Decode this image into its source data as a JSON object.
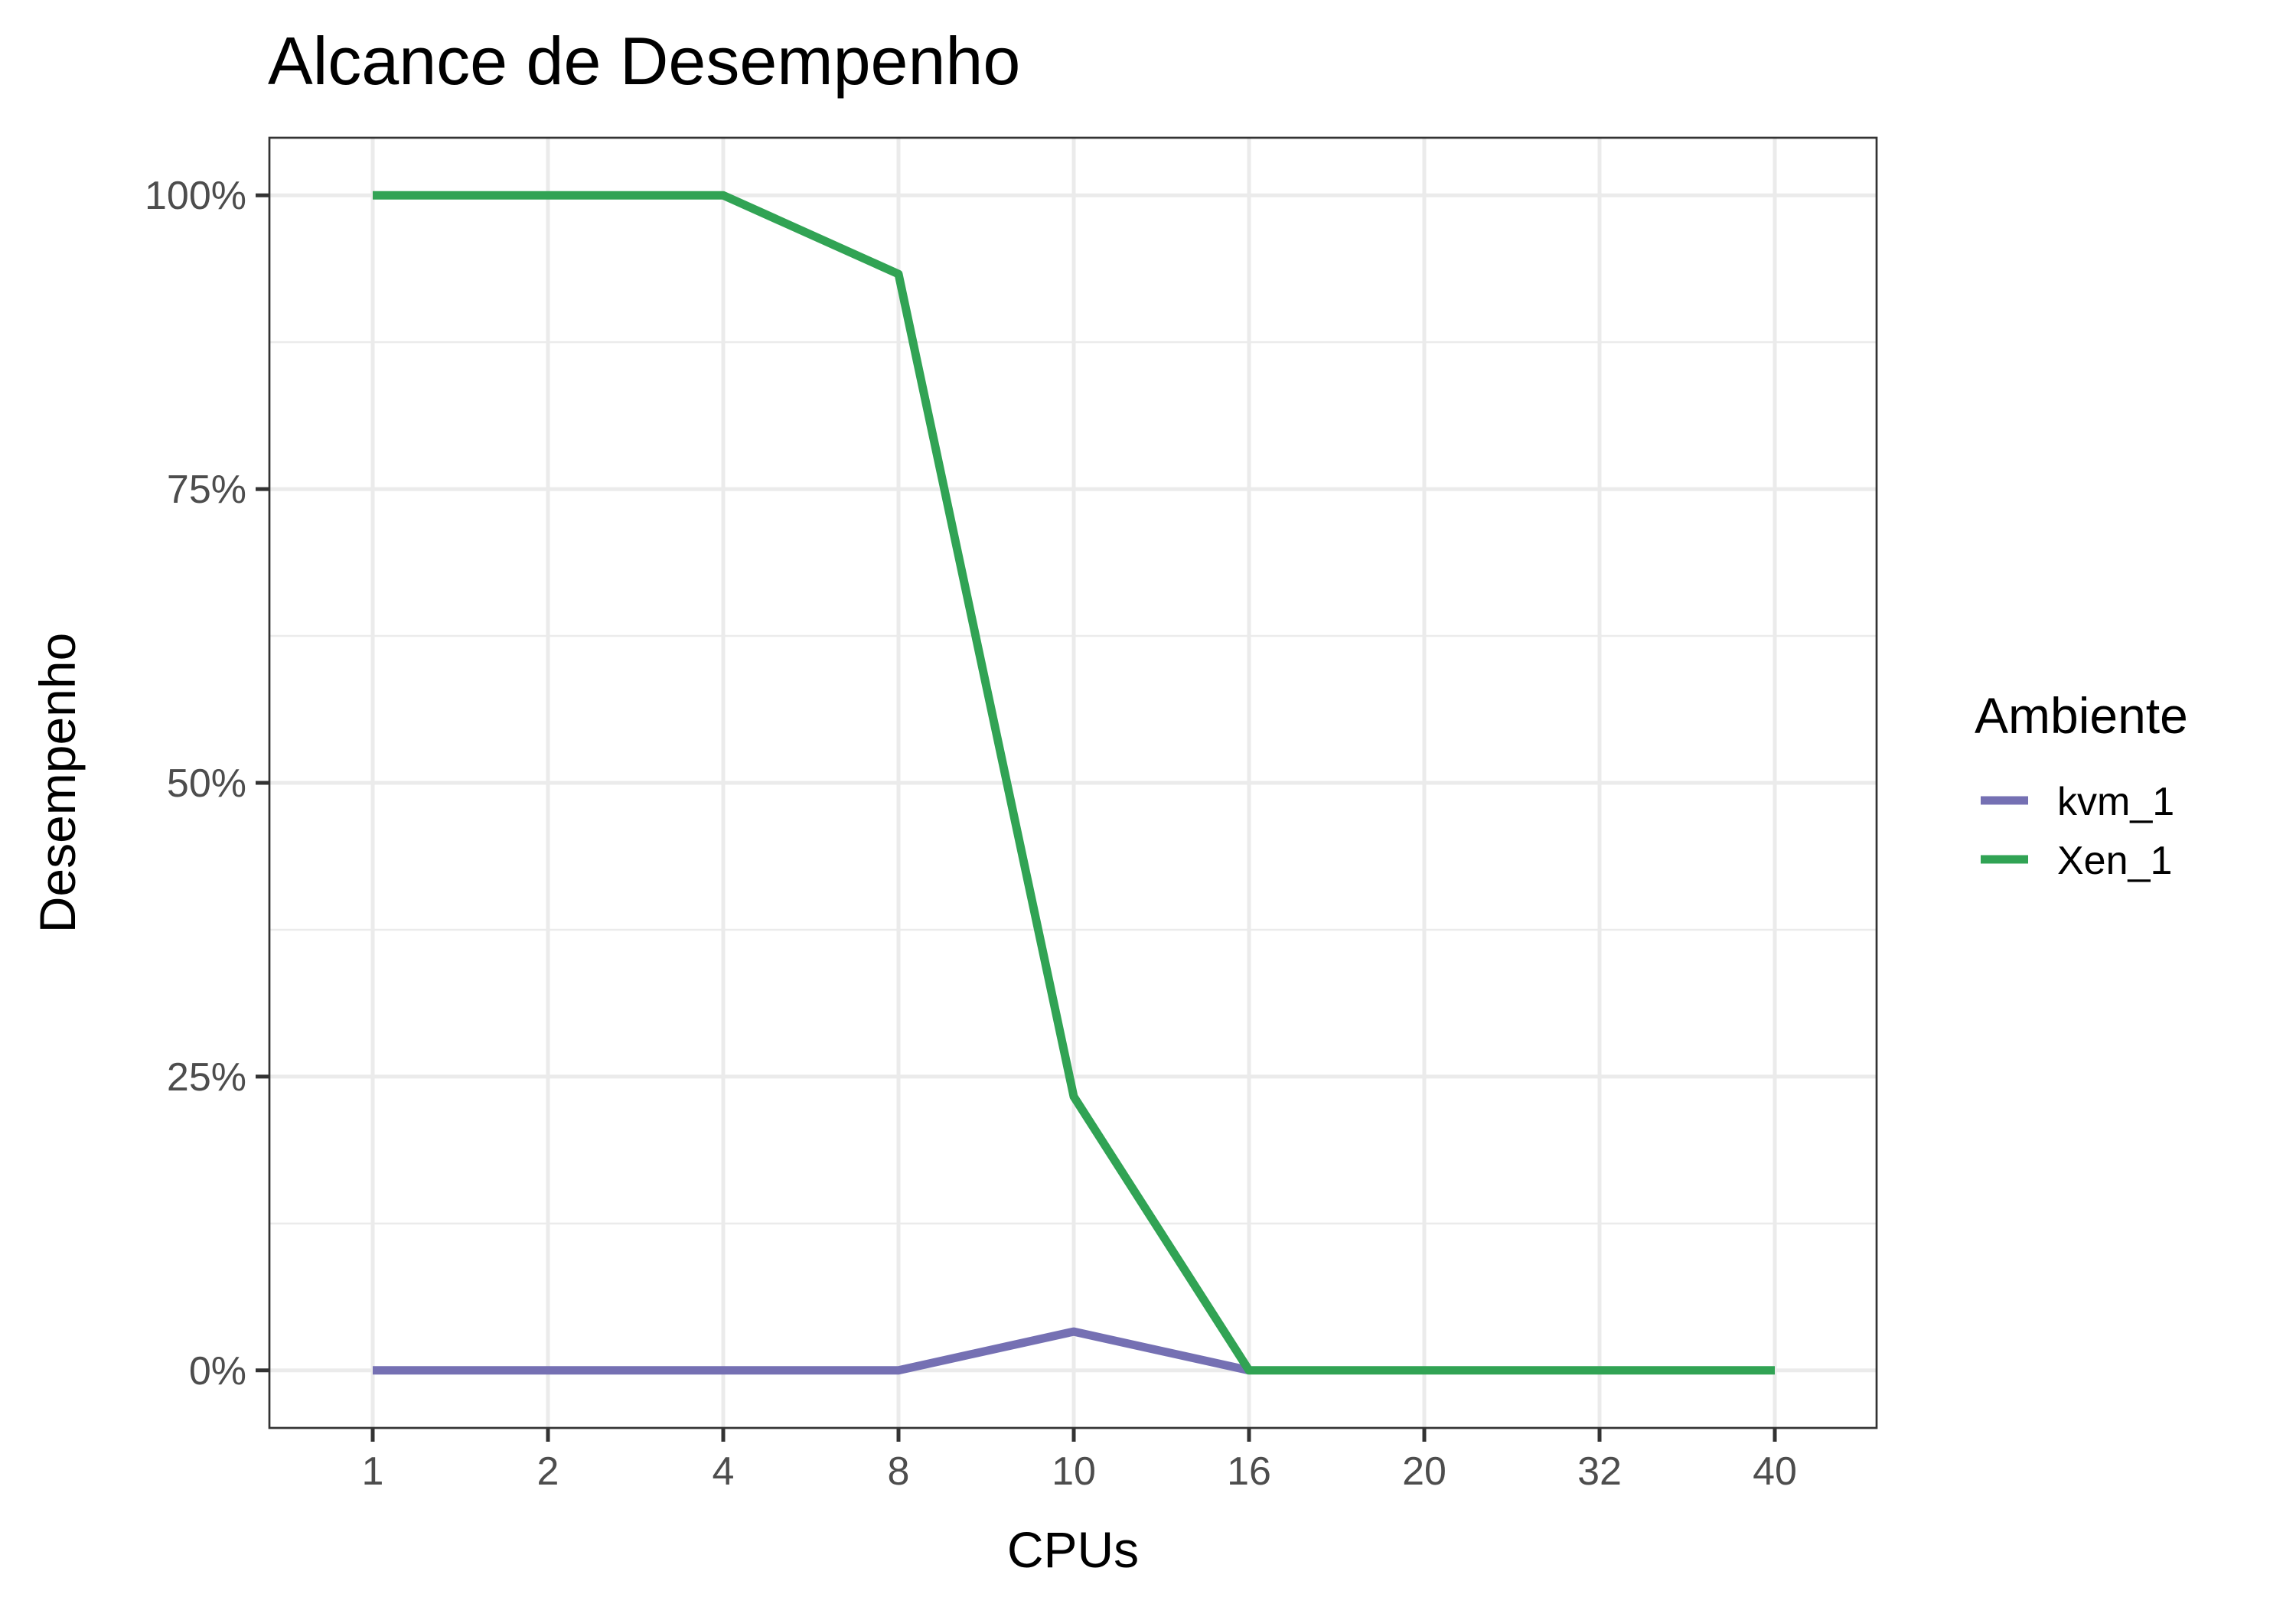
{
  "chart_data": {
    "type": "line",
    "title": "Alcance de Desempenho",
    "xlabel": "CPUs",
    "ylabel": "Desempenho",
    "categories": [
      "1",
      "2",
      "4",
      "8",
      "10",
      "16",
      "20",
      "32",
      "40"
    ],
    "y_ticks": [
      0,
      25,
      50,
      75,
      100
    ],
    "y_tick_labels": [
      "0%",
      "25%",
      "50%",
      "75%",
      "100%"
    ],
    "ylim": [
      -4.9,
      104.9
    ],
    "grid": true,
    "legend": {
      "title": "Ambiente",
      "placement": "right"
    },
    "series": [
      {
        "name": "kvm_1",
        "color": "#7570b3",
        "values": [
          0,
          0,
          0,
          0,
          3.3,
          0,
          null,
          null,
          null
        ]
      },
      {
        "name": "Xen_1",
        "color": "#31a354",
        "values": [
          100,
          100,
          100,
          93.3,
          23.3,
          0,
          0,
          0,
          0
        ]
      }
    ]
  }
}
